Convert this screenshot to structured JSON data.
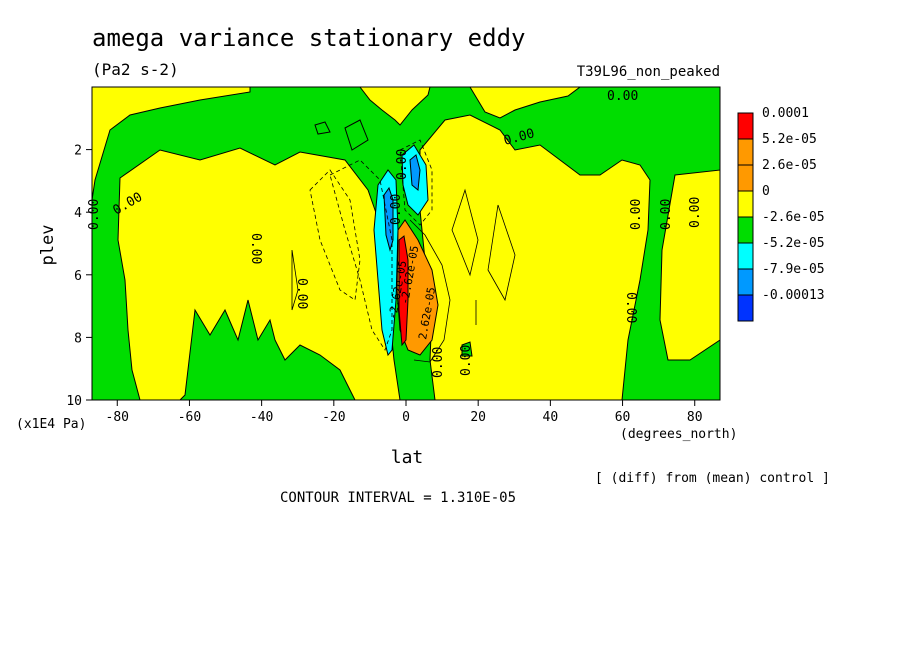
{
  "chart_data": {
    "type": "contour",
    "title": "amega variance stationary eddy",
    "units": "(Pa2 s-2)",
    "run_label": "T39L96_non_peaked",
    "xlabel": "lat",
    "xunits": "(degrees_north)",
    "ylabel": "plev",
    "yunits": "(x1E4 Pa)",
    "xlim": [
      -87,
      87
    ],
    "ylim": [
      10,
      0
    ],
    "x_ticks": [
      -80,
      -60,
      -40,
      -20,
      0,
      20,
      40,
      60,
      80
    ],
    "y_ticks": [
      2,
      4,
      6,
      8,
      10
    ],
    "levels": [
      "0.0001",
      "5.2e-05",
      "2.6e-05",
      "0",
      "-2.6e-05",
      "-5.2e-05",
      "-7.9e-05",
      "-0.00013"
    ],
    "level_colors": [
      "#ff0000",
      "#ff9900",
      "#ff9900",
      "#ffff00",
      "#00dd00",
      "#00ffff",
      "#0099ff",
      "#0033ff"
    ],
    "contour_interval": "CONTOUR INTERVAL = 1.310E-05",
    "note": "[ (diff) from (mean) control ]",
    "contour_labels": [
      "0.00",
      "0.00",
      "0.00",
      "0.00",
      "0.00",
      "0.00",
      "0.00",
      "0.00",
      "0.00",
      "0.00",
      "0.00",
      "0.00",
      "0.00",
      "0.00"
    ],
    "center_labels": [
      "-2.62e-05",
      "2.62e-05",
      "-2.62e-05"
    ]
  }
}
